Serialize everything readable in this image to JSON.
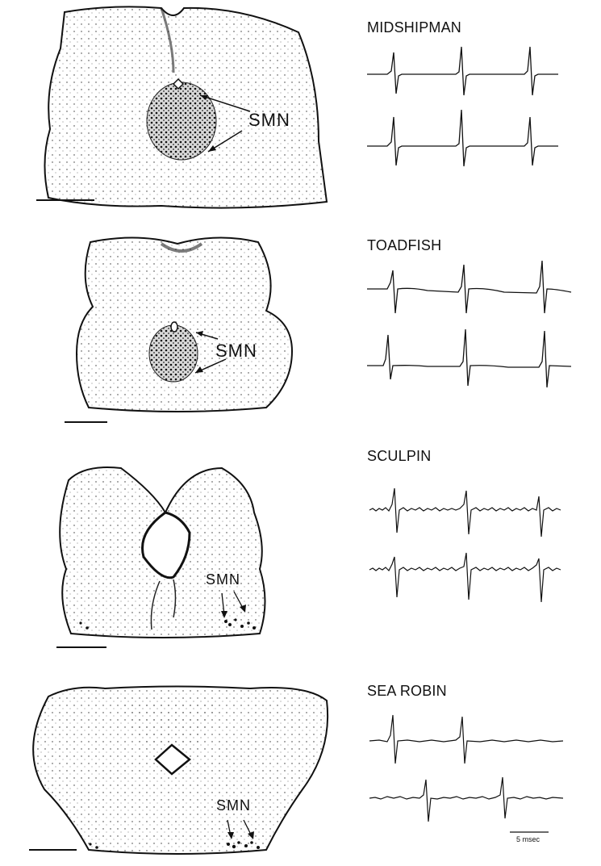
{
  "panels": [
    {
      "species": "MIDSHIPMAN",
      "region_label": "SMN"
    },
    {
      "species": "TOADFISH",
      "region_label": "SMN"
    },
    {
      "species": "SCULPIN",
      "region_label": "SMN"
    },
    {
      "species": "SEA ROBIN",
      "region_label": "SMN"
    }
  ],
  "scale": {
    "time_label": "5 msec"
  }
}
